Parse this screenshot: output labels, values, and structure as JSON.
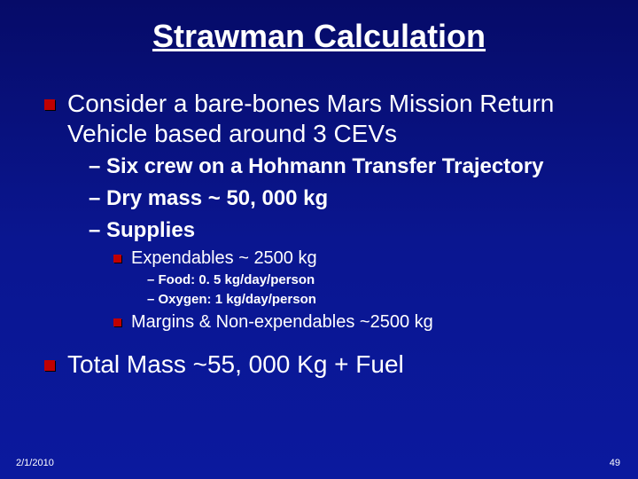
{
  "slide": {
    "background_gradient": [
      "#060b68",
      "#0a1690",
      "#0b199e"
    ],
    "text_color": "#ffffff",
    "bullet_color": "#c00000",
    "title": "Strawman Calculation",
    "title_fontsize": 36,
    "items": [
      {
        "level": 1,
        "text": "Consider a bare-bones Mars Mission Return Vehicle based around 3 CEVs",
        "fontsize": 28
      },
      {
        "level": 2,
        "text": "Six crew on a Hohmann Transfer Trajectory",
        "fontsize": 24
      },
      {
        "level": 2,
        "text": "Dry mass ~ 50, 000 kg",
        "fontsize": 24
      },
      {
        "level": 2,
        "text": "Supplies",
        "fontsize": 24
      },
      {
        "level": 3,
        "text": "Expendables ~ 2500 kg",
        "fontsize": 20
      },
      {
        "level": 4,
        "text": "Food: 0. 5 kg/day/person",
        "fontsize": 15
      },
      {
        "level": 4,
        "text": "Oxygen: 1 kg/day/person",
        "fontsize": 15
      },
      {
        "level": 3,
        "text": "Margins & Non-expendables ~2500 kg",
        "fontsize": 20
      },
      {
        "level": 1,
        "text": "Total Mass ~55, 000 Kg + Fuel",
        "fontsize": 28
      }
    ],
    "footer": {
      "date": "2/1/2010",
      "page": "49"
    }
  }
}
